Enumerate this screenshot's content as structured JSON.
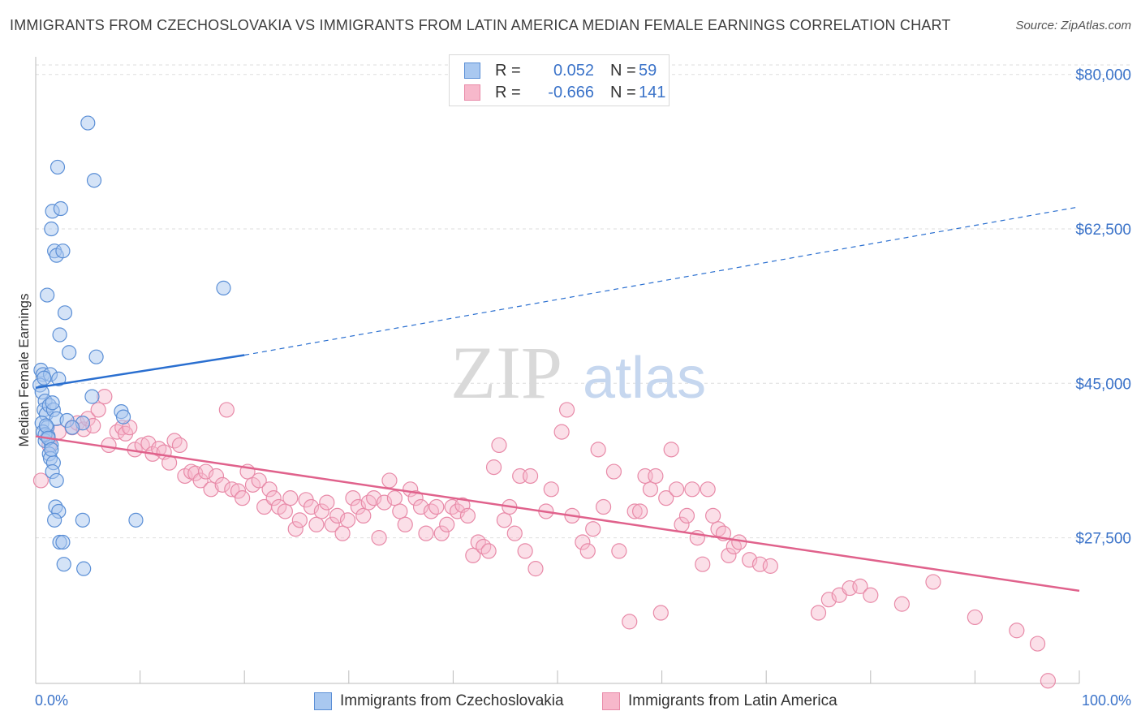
{
  "header": {
    "title": "IMMIGRANTS FROM CZECHOSLOVAKIA VS IMMIGRANTS FROM LATIN AMERICA MEDIAN FEMALE EARNINGS CORRELATION CHART",
    "source": "Source: ZipAtlas.com"
  },
  "legend": {
    "row1": {
      "r_label": "R =",
      "r_value": "0.052",
      "n_label": "N =",
      "n_value": "59"
    },
    "row2": {
      "r_label": "R =",
      "r_value": "-0.666",
      "n_label": "N =",
      "n_value": "141"
    }
  },
  "bottom_legend": {
    "series1": "Immigrants from Czechoslovakia",
    "series2": "Immigrants from Latin America"
  },
  "colors": {
    "blue_fill": "#a9c8f0",
    "blue_stroke": "#5b8fd6",
    "blue_line": "#2a6fd0",
    "pink_fill": "#f7b8cb",
    "pink_stroke": "#e88aa8",
    "pink_line": "#e0628c",
    "axis_text": "#3b73c9"
  },
  "chart_data": {
    "type": "scatter",
    "title": "IMMIGRANTS FROM CZECHOSLOVAKIA VS IMMIGRANTS FROM LATIN AMERICA MEDIAN FEMALE EARNINGS CORRELATION CHART",
    "xlabel": "",
    "ylabel": "Median Female Earnings",
    "xlim": [
      0,
      100
    ],
    "ylim": [
      11000,
      82000
    ],
    "x_tick_labels": [
      "0.0%",
      "100.0%"
    ],
    "y_ticks": [
      27500,
      45000,
      62500,
      80000
    ],
    "y_tick_labels": [
      "$27,500",
      "$45,000",
      "$62,500",
      "$80,000"
    ],
    "watermark": {
      "part1": "ZIP",
      "part2": "atlas"
    },
    "series": [
      {
        "name": "Immigrants from Czechoslovakia",
        "R": 0.052,
        "N": 59,
        "trend": {
          "x0": 0,
          "y0": 44500,
          "x1": 20,
          "y1": 48200,
          "dashed_to_x": 100,
          "dashed_to_y": 65000
        },
        "points": [
          [
            0.5,
            46500
          ],
          [
            0.7,
            46000
          ],
          [
            0.4,
            44800
          ],
          [
            0.6,
            44000
          ],
          [
            0.9,
            43000
          ],
          [
            0.8,
            42000
          ],
          [
            1.0,
            41500
          ],
          [
            0.6,
            40500
          ],
          [
            1.1,
            40000
          ],
          [
            0.7,
            39500
          ],
          [
            1.2,
            39000
          ],
          [
            0.9,
            38500
          ],
          [
            1.5,
            38000
          ],
          [
            1.3,
            37000
          ],
          [
            1.4,
            36500
          ],
          [
            1.7,
            36000
          ],
          [
            1.6,
            35000
          ],
          [
            2.0,
            34000
          ],
          [
            1.9,
            31000
          ],
          [
            2.2,
            30500
          ],
          [
            1.8,
            29500
          ],
          [
            2.3,
            27000
          ],
          [
            2.6,
            27000
          ],
          [
            2.7,
            24500
          ],
          [
            4.5,
            29500
          ],
          [
            4.6,
            24000
          ],
          [
            5.8,
            48000
          ],
          [
            5.4,
            43500
          ],
          [
            8.2,
            41800
          ],
          [
            8.4,
            41200
          ],
          [
            9.6,
            29500
          ],
          [
            5.0,
            74500
          ],
          [
            5.6,
            68000
          ],
          [
            2.1,
            69500
          ],
          [
            1.6,
            64500
          ],
          [
            2.4,
            64800
          ],
          [
            1.5,
            62500
          ],
          [
            1.8,
            60000
          ],
          [
            2.0,
            59500
          ],
          [
            2.6,
            60000
          ],
          [
            1.1,
            55000
          ],
          [
            2.8,
            53000
          ],
          [
            2.3,
            50500
          ],
          [
            3.2,
            48500
          ],
          [
            1.4,
            46000
          ],
          [
            2.2,
            45500
          ],
          [
            1.3,
            42500
          ],
          [
            1.7,
            42000
          ],
          [
            2.0,
            41000
          ],
          [
            3.0,
            40800
          ],
          [
            4.5,
            40500
          ],
          [
            3.5,
            40000
          ],
          [
            1.6,
            42800
          ],
          [
            0.8,
            45600
          ],
          [
            0.9,
            39200
          ],
          [
            1.0,
            40200
          ],
          [
            1.2,
            38800
          ],
          [
            18.0,
            55800
          ],
          [
            1.5,
            37500
          ]
        ]
      },
      {
        "name": "Immigrants from Latin America",
        "R": -0.666,
        "N": 141,
        "trend": {
          "x0": 0,
          "y0": 39000,
          "x1": 100,
          "y1": 21500
        },
        "points": [
          [
            0.5,
            34000
          ],
          [
            1.3,
            38000
          ],
          [
            2.2,
            39500
          ],
          [
            3.5,
            40000
          ],
          [
            4.0,
            40500
          ],
          [
            4.6,
            39800
          ],
          [
            5.0,
            41000
          ],
          [
            5.5,
            40200
          ],
          [
            6.0,
            42000
          ],
          [
            6.6,
            43500
          ],
          [
            7.0,
            38000
          ],
          [
            7.8,
            39500
          ],
          [
            8.3,
            40000
          ],
          [
            8.6,
            39300
          ],
          [
            9.0,
            40000
          ],
          [
            9.5,
            37500
          ],
          [
            10.2,
            38000
          ],
          [
            10.8,
            38200
          ],
          [
            11.2,
            37000
          ],
          [
            11.8,
            37600
          ],
          [
            12.3,
            37200
          ],
          [
            12.8,
            36000
          ],
          [
            13.3,
            38500
          ],
          [
            13.8,
            38000
          ],
          [
            14.3,
            34500
          ],
          [
            14.9,
            35000
          ],
          [
            15.3,
            34800
          ],
          [
            15.8,
            34000
          ],
          [
            16.3,
            35000
          ],
          [
            16.8,
            33000
          ],
          [
            17.3,
            34500
          ],
          [
            17.9,
            33500
          ],
          [
            18.3,
            42000
          ],
          [
            18.8,
            33000
          ],
          [
            19.4,
            32800
          ],
          [
            19.8,
            32000
          ],
          [
            20.3,
            35000
          ],
          [
            20.8,
            33500
          ],
          [
            21.4,
            34000
          ],
          [
            21.9,
            31000
          ],
          [
            22.4,
            33000
          ],
          [
            22.8,
            32000
          ],
          [
            23.3,
            31000
          ],
          [
            23.9,
            30500
          ],
          [
            24.4,
            32000
          ],
          [
            24.9,
            28500
          ],
          [
            25.3,
            29500
          ],
          [
            25.9,
            31800
          ],
          [
            26.4,
            31000
          ],
          [
            26.9,
            29000
          ],
          [
            27.4,
            30500
          ],
          [
            27.9,
            31500
          ],
          [
            28.4,
            29000
          ],
          [
            28.9,
            30000
          ],
          [
            29.4,
            28000
          ],
          [
            29.9,
            29500
          ],
          [
            30.4,
            32000
          ],
          [
            30.9,
            31000
          ],
          [
            31.4,
            30000
          ],
          [
            31.9,
            31500
          ],
          [
            32.4,
            32000
          ],
          [
            32.9,
            27500
          ],
          [
            33.4,
            31500
          ],
          [
            33.9,
            34000
          ],
          [
            34.4,
            32000
          ],
          [
            34.9,
            30500
          ],
          [
            35.4,
            29000
          ],
          [
            35.9,
            33000
          ],
          [
            36.4,
            32000
          ],
          [
            36.9,
            31000
          ],
          [
            37.4,
            28000
          ],
          [
            37.9,
            30500
          ],
          [
            38.4,
            31000
          ],
          [
            38.9,
            28000
          ],
          [
            39.4,
            29000
          ],
          [
            39.9,
            31000
          ],
          [
            40.4,
            30500
          ],
          [
            40.9,
            31200
          ],
          [
            41.4,
            30000
          ],
          [
            41.9,
            25500
          ],
          [
            42.4,
            27000
          ],
          [
            42.9,
            26500
          ],
          [
            43.4,
            26000
          ],
          [
            43.9,
            35500
          ],
          [
            44.4,
            38000
          ],
          [
            44.9,
            29500
          ],
          [
            45.4,
            31000
          ],
          [
            45.9,
            28000
          ],
          [
            46.4,
            34500
          ],
          [
            46.9,
            26000
          ],
          [
            47.4,
            34500
          ],
          [
            47.9,
            24000
          ],
          [
            48.9,
            30500
          ],
          [
            49.4,
            33000
          ],
          [
            50.4,
            39500
          ],
          [
            50.9,
            42000
          ],
          [
            51.4,
            30000
          ],
          [
            52.4,
            27000
          ],
          [
            52.9,
            26000
          ],
          [
            53.4,
            28500
          ],
          [
            53.9,
            37500
          ],
          [
            54.4,
            31000
          ],
          [
            55.4,
            35000
          ],
          [
            55.9,
            26000
          ],
          [
            56.9,
            18000
          ],
          [
            57.4,
            30500
          ],
          [
            57.9,
            30500
          ],
          [
            58.4,
            34500
          ],
          [
            58.9,
            33000
          ],
          [
            59.4,
            34500
          ],
          [
            59.9,
            19000
          ],
          [
            60.4,
            32000
          ],
          [
            60.9,
            37500
          ],
          [
            61.4,
            33000
          ],
          [
            61.9,
            29000
          ],
          [
            62.4,
            30000
          ],
          [
            62.9,
            33000
          ],
          [
            63.4,
            27500
          ],
          [
            63.9,
            24500
          ],
          [
            64.4,
            33000
          ],
          [
            64.9,
            30000
          ],
          [
            65.4,
            28500
          ],
          [
            65.9,
            28000
          ],
          [
            66.4,
            25500
          ],
          [
            66.9,
            26500
          ],
          [
            67.4,
            27000
          ],
          [
            68.4,
            25000
          ],
          [
            69.4,
            24500
          ],
          [
            70.4,
            24300
          ],
          [
            75.0,
            19000
          ],
          [
            76.0,
            20500
          ],
          [
            77.0,
            21000
          ],
          [
            78.0,
            21800
          ],
          [
            79.0,
            22000
          ],
          [
            80.0,
            21000
          ],
          [
            83.0,
            20000
          ],
          [
            86.0,
            22500
          ],
          [
            90.0,
            18500
          ],
          [
            94.0,
            17000
          ],
          [
            96.0,
            15500
          ],
          [
            97.0,
            11300
          ]
        ]
      }
    ]
  }
}
